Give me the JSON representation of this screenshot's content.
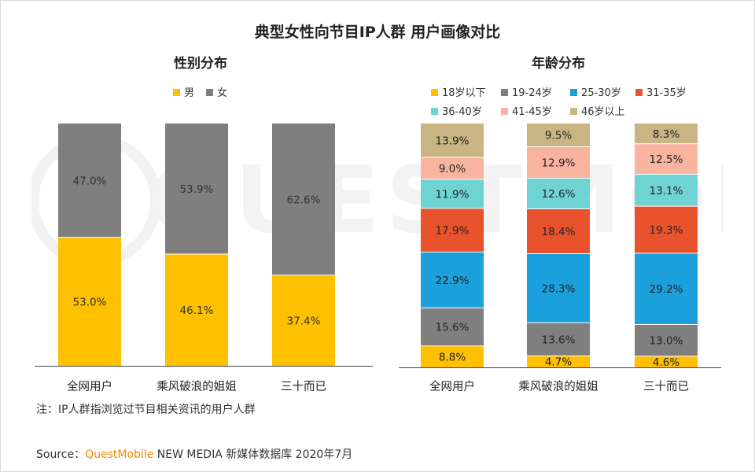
{
  "title": "典型女性向节目IP人群 用户画像对比",
  "watermark_text": "QUESTMOBILE",
  "footnote": "注：IP人群指浏览过节目相关资讯的用户人群",
  "source": {
    "prefix": "Source：",
    "brand": "QuestMobile",
    "suffix": " NEW MEDIA 新媒体数据库 2020年7月"
  },
  "chart_data": [
    {
      "type": "bar",
      "stacked": true,
      "title": "性别分布",
      "categories": [
        "全网用户",
        "乘风破浪的姐姐",
        "三十而已"
      ],
      "series": [
        {
          "name": "男",
          "color": "#ffc000",
          "values": [
            53.0,
            46.1,
            37.4
          ],
          "labels": [
            "53.0%",
            "46.1%",
            "37.4%"
          ]
        },
        {
          "name": "女",
          "color": "#7f7f7f",
          "values": [
            47.0,
            53.9,
            62.6
          ],
          "labels": [
            "47.0%",
            "53.9%",
            "62.6%"
          ]
        }
      ],
      "ylim": [
        0,
        100
      ],
      "legend_position": "top-center"
    },
    {
      "type": "bar",
      "stacked": true,
      "title": "年龄分布",
      "categories": [
        "全网用户",
        "乘风破浪的姐姐",
        "三十而已"
      ],
      "series": [
        {
          "name": "18岁以下",
          "color": "#ffc000",
          "values": [
            8.8,
            4.7,
            4.6
          ],
          "labels": [
            "8.8%",
            "4.7%",
            "4.6%"
          ]
        },
        {
          "name": "19-24岁",
          "color": "#7f7f7f",
          "values": [
            15.6,
            13.6,
            13.0
          ],
          "labels": [
            "15.6%",
            "13.6%",
            "13.0%"
          ]
        },
        {
          "name": "25-30岁",
          "color": "#1ca0dc",
          "values": [
            22.9,
            28.3,
            29.2
          ],
          "labels": [
            "22.9%",
            "28.3%",
            "29.2%"
          ]
        },
        {
          "name": "31-35岁",
          "color": "#e8532e",
          "values": [
            17.9,
            18.4,
            19.3
          ],
          "labels": [
            "17.9%",
            "18.4%",
            "19.3%"
          ]
        },
        {
          "name": "36-40岁",
          "color": "#6fd3d3",
          "values": [
            11.9,
            12.6,
            13.1
          ],
          "labels": [
            "11.9%",
            "12.6%",
            "13.1%"
          ]
        },
        {
          "name": "41-45岁",
          "color": "#f9b4a0",
          "values": [
            9.0,
            12.9,
            12.5
          ],
          "labels": [
            "9.0%",
            "12.9%",
            "12.5%"
          ]
        },
        {
          "name": "46岁以上",
          "color": "#c8b583",
          "values": [
            13.9,
            9.5,
            8.3
          ],
          "labels": [
            "13.9%",
            "9.5%",
            "8.3%"
          ]
        }
      ],
      "ylim": [
        0,
        100
      ],
      "legend_position": "top-center"
    }
  ]
}
